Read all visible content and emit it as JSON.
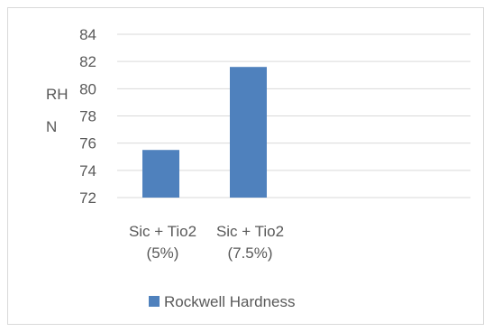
{
  "chart_data": {
    "type": "bar",
    "title": "",
    "categories": [
      [
        "Sic + Tio2",
        "(5%)"
      ],
      [
        "Sic + Tio2",
        "(7.5%)"
      ]
    ],
    "series": [
      {
        "name": "Rockwell Hardness",
        "values": [
          75.5,
          81.6
        ],
        "color": "#4f81bd"
      }
    ],
    "ylabel": [
      "RH",
      "N"
    ],
    "xlabel": "",
    "ylim": [
      72,
      84
    ],
    "yticks": [
      72,
      74,
      76,
      78,
      80,
      82,
      84
    ],
    "grid": true,
    "legend": "bottom"
  }
}
